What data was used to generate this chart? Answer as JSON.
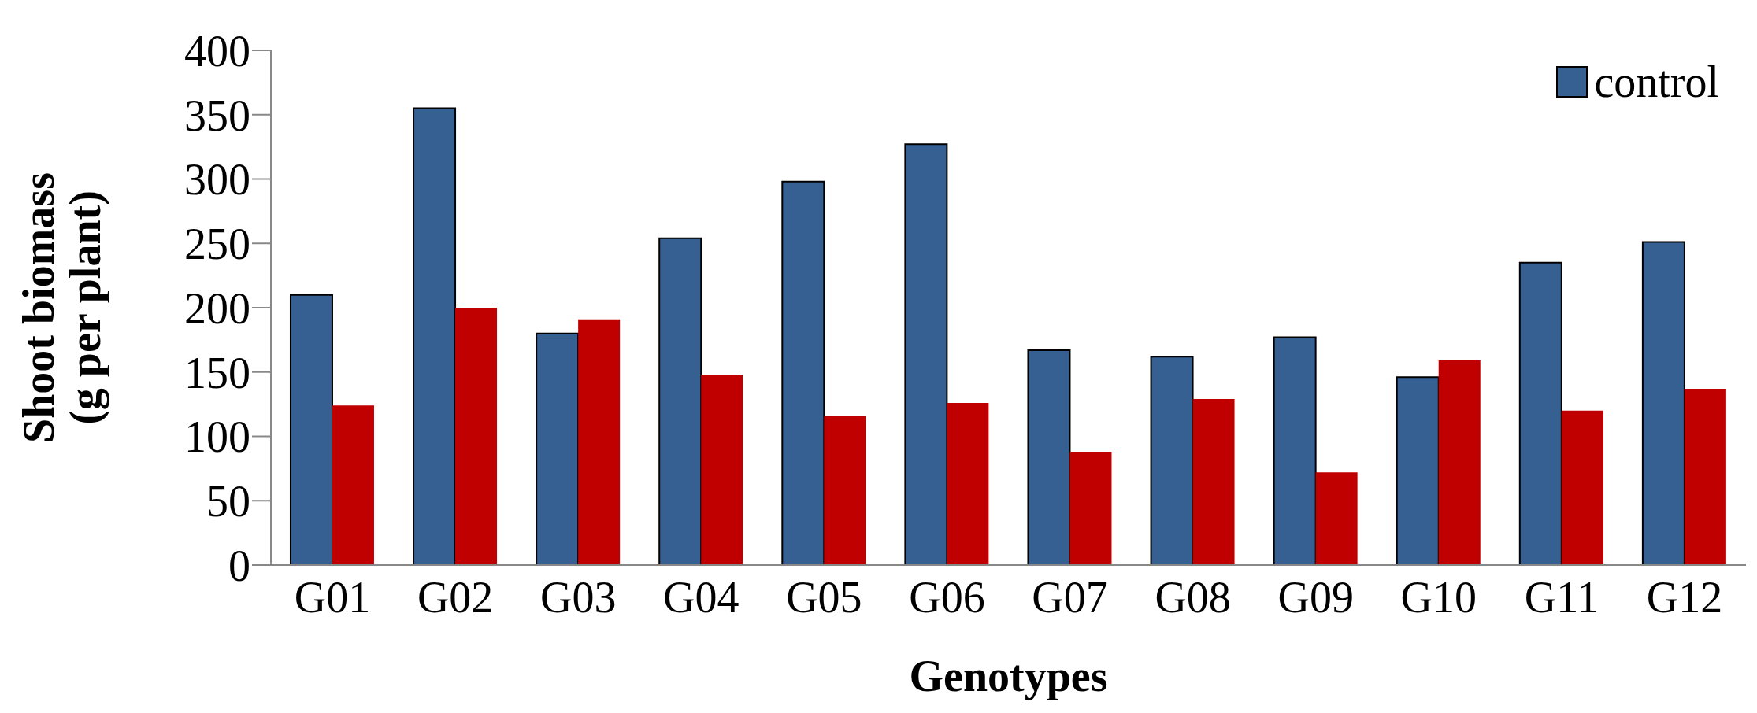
{
  "chart_data": {
    "type": "bar",
    "xlabel": "Genotypes",
    "ylabel": "Shoot biomass\n(g per plant)",
    "categories": [
      "G01",
      "G02",
      "G03",
      "G04",
      "G05",
      "G06",
      "G07",
      "G08",
      "G09",
      "G10",
      "G11",
      "G12"
    ],
    "series": [
      {
        "name": "control",
        "color": "#366092",
        "values": [
          210,
          355,
          180,
          254,
          298,
          327,
          167,
          162,
          177,
          146,
          235,
          251
        ]
      },
      {
        "color": "#c00000",
        "values": [
          124,
          200,
          191,
          148,
          116,
          126,
          88,
          129,
          72,
          159,
          120,
          137
        ]
      }
    ],
    "ylim": [
      0,
      400
    ],
    "yticks": [
      0,
      50,
      100,
      150,
      200,
      250,
      300,
      350,
      400
    ],
    "grid": false,
    "legend": "top right"
  }
}
